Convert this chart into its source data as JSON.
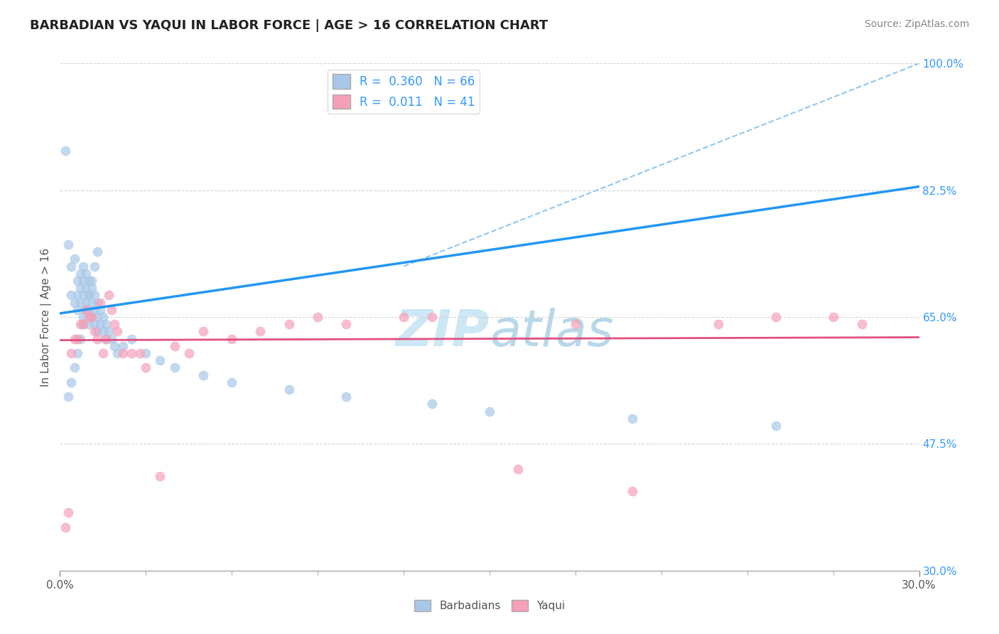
{
  "title": "BARBADIAN VS YAQUI IN LABOR FORCE | AGE > 16 CORRELATION CHART",
  "source_text": "Source: ZipAtlas.com",
  "ylabel": "In Labor Force | Age > 16",
  "xlim": [
    0.0,
    0.3
  ],
  "ylim": [
    0.3,
    1.0
  ],
  "xtick_positions": [
    0.0,
    0.3
  ],
  "xtick_labels": [
    "0.0%",
    "30.0%"
  ],
  "yticks": [
    0.3,
    0.475,
    0.65,
    0.825,
    1.0
  ],
  "ytick_labels": [
    "30.0%",
    "47.5%",
    "65.0%",
    "82.5%",
    "100.0%"
  ],
  "legend1_label": "R =  0.360   N = 66",
  "legend2_label": "R =  0.011   N = 41",
  "barbadian_color": "#a8c8e8",
  "yaqui_color": "#f4a0b8",
  "barbadian_line_color": "#2196F3",
  "yaqui_line_color": "#e05080",
  "dashed_line_color": "#90c8f0",
  "background_color": "#ffffff",
  "watermark_color": "#cce8f4",
  "blue_line_x0": 0.0,
  "blue_line_y0": 0.655,
  "blue_line_x1": 0.3,
  "blue_line_y1": 0.83,
  "pink_line_x0": 0.0,
  "pink_line_y0": 0.618,
  "pink_line_x1": 0.3,
  "pink_line_y1": 0.622,
  "dash_line_x0": 0.12,
  "dash_line_y0": 0.72,
  "dash_line_x1": 0.3,
  "dash_line_y1": 1.0,
  "barbadian_x": [
    0.002,
    0.003,
    0.004,
    0.004,
    0.005,
    0.005,
    0.006,
    0.006,
    0.006,
    0.007,
    0.007,
    0.007,
    0.008,
    0.008,
    0.008,
    0.008,
    0.009,
    0.009,
    0.009,
    0.01,
    0.01,
    0.01,
    0.01,
    0.011,
    0.011,
    0.011,
    0.012,
    0.012,
    0.012,
    0.013,
    0.013,
    0.013,
    0.014,
    0.014,
    0.015,
    0.015,
    0.016,
    0.016,
    0.017,
    0.018,
    0.019,
    0.02,
    0.022,
    0.025,
    0.03,
    0.035,
    0.04,
    0.05,
    0.06,
    0.08,
    0.1,
    0.13,
    0.15,
    0.2,
    0.25,
    0.003,
    0.004,
    0.005,
    0.006,
    0.007,
    0.008,
    0.009,
    0.01,
    0.011,
    0.012,
    0.013
  ],
  "barbadian_y": [
    0.88,
    0.75,
    0.72,
    0.68,
    0.73,
    0.67,
    0.7,
    0.68,
    0.66,
    0.71,
    0.69,
    0.67,
    0.72,
    0.7,
    0.68,
    0.65,
    0.71,
    0.69,
    0.67,
    0.7,
    0.68,
    0.66,
    0.64,
    0.69,
    0.67,
    0.65,
    0.68,
    0.66,
    0.64,
    0.67,
    0.65,
    0.63,
    0.66,
    0.64,
    0.65,
    0.63,
    0.64,
    0.62,
    0.63,
    0.62,
    0.61,
    0.6,
    0.61,
    0.62,
    0.6,
    0.59,
    0.58,
    0.57,
    0.56,
    0.55,
    0.54,
    0.53,
    0.52,
    0.51,
    0.5,
    0.54,
    0.56,
    0.58,
    0.6,
    0.62,
    0.64,
    0.66,
    0.68,
    0.7,
    0.72,
    0.74
  ],
  "yaqui_x": [
    0.002,
    0.004,
    0.006,
    0.008,
    0.01,
    0.012,
    0.014,
    0.016,
    0.018,
    0.02,
    0.025,
    0.03,
    0.04,
    0.05,
    0.06,
    0.08,
    0.1,
    0.13,
    0.16,
    0.2,
    0.25,
    0.28,
    0.003,
    0.005,
    0.007,
    0.009,
    0.011,
    0.013,
    0.015,
    0.017,
    0.019,
    0.022,
    0.028,
    0.035,
    0.045,
    0.07,
    0.09,
    0.12,
    0.18,
    0.23,
    0.27
  ],
  "yaqui_y": [
    0.36,
    0.6,
    0.62,
    0.64,
    0.65,
    0.63,
    0.67,
    0.62,
    0.66,
    0.63,
    0.6,
    0.58,
    0.61,
    0.63,
    0.62,
    0.64,
    0.64,
    0.65,
    0.44,
    0.41,
    0.65,
    0.64,
    0.38,
    0.62,
    0.64,
    0.66,
    0.65,
    0.62,
    0.6,
    0.68,
    0.64,
    0.6,
    0.6,
    0.43,
    0.6,
    0.63,
    0.65,
    0.65,
    0.64,
    0.64,
    0.65
  ]
}
